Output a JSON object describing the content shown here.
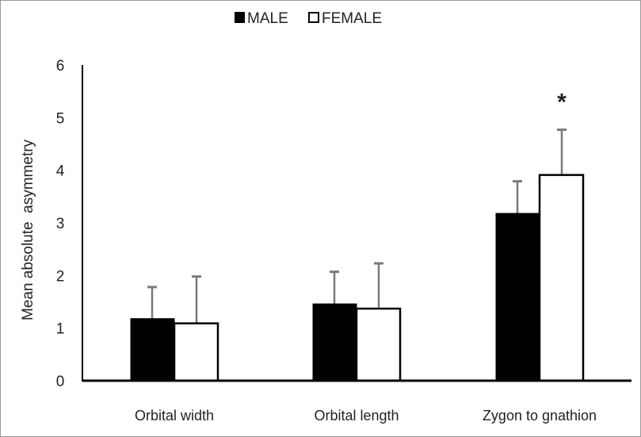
{
  "chart_data": {
    "type": "bar",
    "title": "",
    "xlabel": "",
    "ylabel": "Mean absolute  asymmetry",
    "ylim": [
      0,
      6
    ],
    "yticks": [
      "0",
      "1",
      "2",
      "3",
      "4",
      "5",
      "6"
    ],
    "categories": [
      "Orbital width",
      "Orbital length",
      "Zygon to gnathion"
    ],
    "series": [
      {
        "name": "MALE",
        "color": "#000000",
        "values": [
          1.18,
          1.46,
          3.18
        ],
        "error_upper": [
          1.78,
          2.07,
          3.79
        ]
      },
      {
        "name": "FEMALE",
        "color": "#ffffff",
        "values": [
          1.09,
          1.37,
          3.91
        ],
        "error_upper": [
          1.98,
          2.23,
          4.77
        ]
      }
    ],
    "legend_position": "top-center",
    "grid": false,
    "annotations": [
      {
        "text": "*",
        "category": "Zygon to gnathion",
        "series": "FEMALE"
      }
    ]
  }
}
